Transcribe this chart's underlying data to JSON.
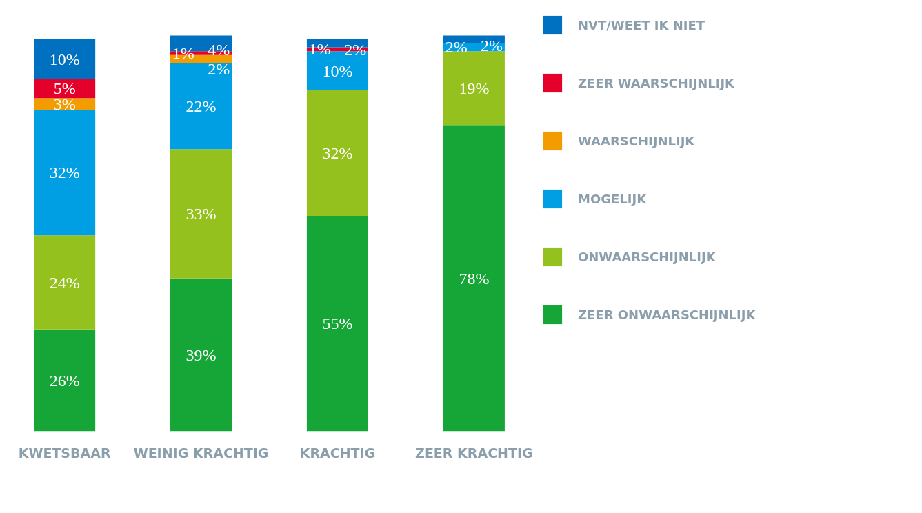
{
  "chart_data": {
    "type": "bar",
    "stacked": true,
    "categories": [
      "KWETSBAAR",
      "WEINIG KRACHTIG",
      "KRACHTIG",
      "ZEER KRACHTIG"
    ],
    "tick_labels": "x",
    "legend": "right",
    "series": [
      {
        "name": "ZEER ONWAARSCHIJNLIJK",
        "color": "#16a638",
        "values": [
          26,
          39,
          55,
          78
        ],
        "value_labels": [
          "26%",
          "39%",
          "55%",
          "78%"
        ]
      },
      {
        "name": "ONWAARSCHIJNLIJK",
        "color": "#95c11f",
        "values": [
          24,
          33,
          32,
          19
        ],
        "value_labels": [
          "24%",
          "33%",
          "32%",
          "19%"
        ]
      },
      {
        "name": "MOGELIJK",
        "color": "#009fe3",
        "values": [
          32,
          22,
          10,
          2
        ],
        "value_labels": [
          "32%",
          "22%",
          "10%",
          "2%"
        ]
      },
      {
        "name": "WAARSCHIJNLIJK",
        "color": "#f39c00",
        "values": [
          3,
          2,
          0,
          0
        ],
        "value_labels": [
          "3%",
          "2%",
          null,
          null
        ]
      },
      {
        "name": "ZEER WAARSCHIJNLIJK",
        "color": "#e4002b",
        "values": [
          5,
          1,
          1,
          0
        ],
        "value_labels": [
          "5%",
          "1%",
          "1%",
          null
        ]
      },
      {
        "name": "NVT/WEET IK NIET",
        "color": "#0070c0",
        "values": [
          10,
          4,
          2,
          2
        ],
        "value_labels": [
          "10%",
          "4%",
          "2%",
          "2%"
        ]
      }
    ]
  }
}
